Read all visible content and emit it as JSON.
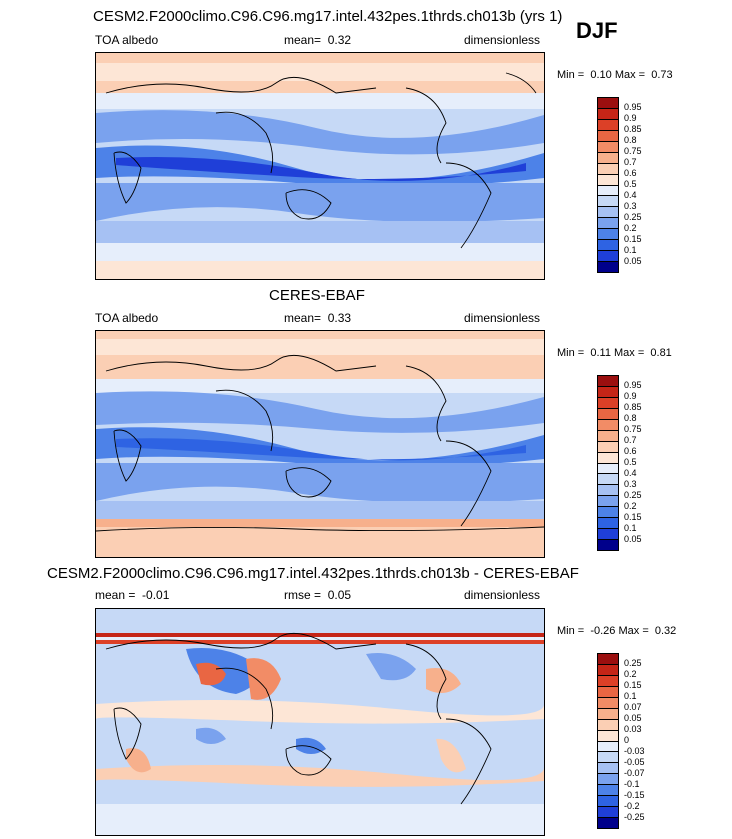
{
  "season": "DJF",
  "colors": {
    "abs_levels": [
      "#00008b",
      "#1a1ab5",
      "#1f3fd8",
      "#2e63e3",
      "#4d82e8",
      "#7aa2ee",
      "#a6c1f3",
      "#c6d9f6",
      "#e6eefb",
      "#fde6d6",
      "#fbcfb4",
      "#f7b08c",
      "#f28c66",
      "#e96643",
      "#dc4027",
      "#c52517",
      "#9b0f0f"
    ],
    "diff_levels": [
      "#00008b",
      "#1a1ab5",
      "#1f3fd8",
      "#2e63e3",
      "#4d82e8",
      "#7aa2ee",
      "#a6c1f3",
      "#c6d9f6",
      "#e6eefb",
      "#fde6d6",
      "#fbcfb4",
      "#f7b08c",
      "#f28c66",
      "#e96643",
      "#dc4027",
      "#c52517",
      "#9b0f0f"
    ]
  },
  "panels": [
    {
      "title": "CESM2.F2000climo.C96.C96.mg17.intel.432pes.1thrds.ch013b (yrs 1)",
      "left_label": "TOA albedo",
      "mean_label": "mean=",
      "mean_value": "0.32",
      "units": "dimensionless",
      "min_label": "Min =",
      "min_value": "0.10",
      "max_label": "Max =",
      "max_value": "0.73",
      "colorbar_labels": [
        "0.95",
        "0.9",
        "0.85",
        "0.8",
        "0.75",
        "0.7",
        "0.6",
        "0.5",
        "0.4",
        "0.3",
        "0.25",
        "0.2",
        "0.15",
        "0.1",
        "0.05"
      ]
    },
    {
      "title": "CERES-EBAF",
      "left_label": "TOA albedo",
      "mean_label": "mean=",
      "mean_value": "0.33",
      "units": "dimensionless",
      "min_label": "Min =",
      "min_value": "0.11",
      "max_label": "Max =",
      "max_value": "0.81",
      "colorbar_labels": [
        "0.95",
        "0.9",
        "0.85",
        "0.8",
        "0.75",
        "0.7",
        "0.6",
        "0.5",
        "0.4",
        "0.3",
        "0.25",
        "0.2",
        "0.15",
        "0.1",
        "0.05"
      ]
    },
    {
      "title": "CESM2.F2000climo.C96.C96.mg17.intel.432pes.1thrds.ch013b - CERES-EBAF",
      "left_label": "mean =",
      "left_value": "-0.01",
      "mean_label": "rmse =",
      "mean_value": "0.05",
      "units": "dimensionless",
      "min_label": "Min =",
      "min_value": "-0.26",
      "max_label": "Max =",
      "max_value": "0.32",
      "colorbar_labels": [
        "0.25",
        "0.2",
        "0.15",
        "0.1",
        "0.07",
        "0.05",
        "0.03",
        "0",
        "-0.03",
        "-0.05",
        "-0.07",
        "-0.1",
        "-0.15",
        "-0.2",
        "-0.25"
      ]
    }
  ]
}
